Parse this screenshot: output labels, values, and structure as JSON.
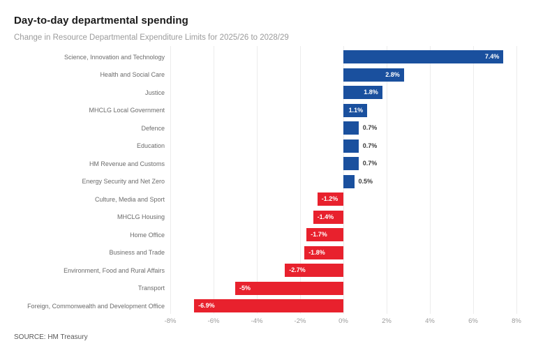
{
  "header": {
    "title": "Day-to-day departmental spending",
    "subtitle": "Change in Resource Departmental Expenditure Limits for 2025/26 to 2028/29"
  },
  "chart_data": {
    "type": "bar",
    "orientation": "horizontal",
    "title": "Day-to-day departmental spending",
    "subtitle": "Change in Resource Departmental Expenditure Limits for 2025/26 to 2028/29",
    "categories": [
      "Science, Innovation and Technology",
      "Health and Social Care",
      "Justice",
      "MHCLG Local Government",
      "Defence",
      "Education",
      "HM Revenue and Customs",
      "Energy Security and Net Zero",
      "Culture, Media and Sport",
      "MHCLG Housing",
      "Home Office",
      "Business and Trade",
      "Environment, Food and Rural Affairs",
      "Transport",
      "Foreign, Commonwealth and Development Office"
    ],
    "values": [
      7.4,
      2.8,
      1.8,
      1.1,
      0.7,
      0.7,
      0.7,
      0.5,
      -1.2,
      -1.4,
      -1.7,
      -1.8,
      -2.7,
      -5,
      -6.9
    ],
    "value_labels": [
      "7.4%",
      "2.8%",
      "1.8%",
      "1.1%",
      "0.7%",
      "0.7%",
      "0.7%",
      "0.5%",
      "-1.2%",
      "-1.4%",
      "-1.7%",
      "-1.8%",
      "-2.7%",
      "-5%",
      "-6.9%"
    ],
    "xlabel": "",
    "ylabel": "",
    "xlim": [
      -8,
      8
    ],
    "xticks": [
      "-8%",
      "-6%",
      "-4%",
      "-2%",
      "0%",
      "2%",
      "4%",
      "6%",
      "8%"
    ],
    "grid": true,
    "legend": "none",
    "colors": {
      "positive_bar": "#1a509e",
      "negative_bar": "#e8212d",
      "gridline": "#ececec",
      "tick_label": "#9b9b9b",
      "category_label": "#6b6b6b",
      "value_label_inside": "#ffffff",
      "value_label_outside": "#3a3a3a"
    }
  },
  "footer": {
    "source": "SOURCE: HM Treasury"
  }
}
